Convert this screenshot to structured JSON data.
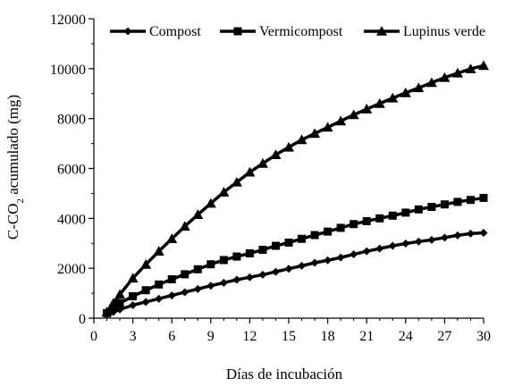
{
  "chart_data": {
    "type": "line",
    "title": "",
    "xlabel": "Días de incubación",
    "ylabel_main": "C-CO",
    "ylabel_sub": "2",
    "ylabel_rest": " acumulado (mg)",
    "xlim": [
      0,
      30
    ],
    "ylim": [
      0,
      12000
    ],
    "xticks": [
      0,
      3,
      6,
      9,
      12,
      15,
      18,
      21,
      24,
      27,
      30
    ],
    "yticks": [
      0,
      2000,
      4000,
      6000,
      8000,
      10000,
      12000
    ],
    "grid": false,
    "legend_position": "top",
    "x": [
      1,
      1.5,
      2,
      3,
      4,
      5,
      6,
      7,
      8,
      9,
      10,
      11,
      12,
      13,
      14,
      15,
      16,
      17,
      18,
      19,
      20,
      21,
      22,
      23,
      24,
      25,
      26,
      27,
      28,
      29,
      30
    ],
    "series": [
      {
        "name": "Compost",
        "marker": "diamond",
        "values": [
          150,
          250,
          350,
          520,
          650,
          780,
          910,
          1040,
          1170,
          1300,
          1420,
          1540,
          1640,
          1740,
          1860,
          1980,
          2100,
          2220,
          2320,
          2430,
          2560,
          2680,
          2790,
          2900,
          2990,
          3070,
          3140,
          3230,
          3320,
          3390,
          3420
        ]
      },
      {
        "name": "Vermicompost",
        "marker": "square",
        "values": [
          200,
          400,
          600,
          880,
          1120,
          1350,
          1560,
          1760,
          1960,
          2160,
          2330,
          2470,
          2600,
          2740,
          2900,
          3030,
          3180,
          3330,
          3470,
          3620,
          3770,
          3890,
          4000,
          4110,
          4230,
          4360,
          4460,
          4560,
          4660,
          4740,
          4820
        ]
      },
      {
        "name": "Lupinus verde",
        "marker": "triangle",
        "values": [
          250,
          600,
          950,
          1600,
          2150,
          2680,
          3180,
          3680,
          4150,
          4600,
          5050,
          5450,
          5850,
          6200,
          6550,
          6850,
          7150,
          7400,
          7650,
          7900,
          8150,
          8380,
          8600,
          8820,
          9030,
          9230,
          9440,
          9640,
          9820,
          9990,
          10120
        ]
      }
    ]
  }
}
